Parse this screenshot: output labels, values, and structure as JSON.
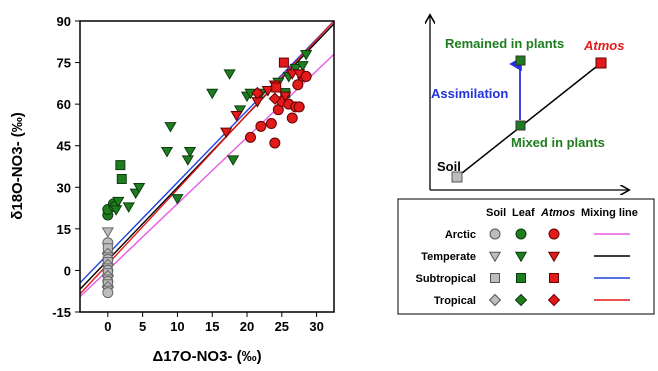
{
  "chart_data": {
    "type": "scatter",
    "xlabel": "Δ17O-NO3- (‰)",
    "ylabel": "δ18O-NO3- (‰)",
    "xlim": [
      -4,
      32.5
    ],
    "ylim": [
      -15,
      90
    ],
    "xticks": [
      0,
      5,
      10,
      15,
      20,
      25,
      30
    ],
    "yticks": [
      -15,
      0,
      15,
      30,
      45,
      60,
      75,
      90
    ],
    "grid": false,
    "marker_colors": {
      "soil": "#bdbdbd",
      "leaf": "#1e7d1e",
      "atmos": "#e31a1c"
    },
    "series": [
      {
        "group": "soil",
        "marker": "mixed",
        "points": [
          [
            0,
            14
          ],
          [
            0,
            10
          ],
          [
            0,
            8
          ],
          [
            0,
            6
          ],
          [
            0,
            5
          ],
          [
            0,
            4
          ],
          [
            0,
            3
          ],
          [
            0,
            2
          ],
          [
            0,
            1
          ],
          [
            0,
            0
          ],
          [
            0,
            -1
          ],
          [
            0,
            -2
          ],
          [
            0,
            -3
          ],
          [
            0,
            -4
          ],
          [
            0,
            -5
          ],
          [
            0,
            -6
          ],
          [
            0,
            -7
          ],
          [
            0,
            -8
          ]
        ]
      },
      {
        "group": "leaf",
        "marker": "circle",
        "points": [
          [
            0,
            20
          ],
          [
            0,
            22
          ],
          [
            0.8,
            24
          ],
          [
            1,
            23
          ]
        ]
      },
      {
        "group": "leaf",
        "marker": "triangle",
        "points": [
          [
            1.2,
            22
          ],
          [
            1.5,
            25
          ],
          [
            3,
            23
          ],
          [
            4,
            28
          ],
          [
            4.5,
            30
          ],
          [
            8.5,
            43
          ],
          [
            9,
            52
          ],
          [
            10,
            26
          ],
          [
            11.5,
            40
          ],
          [
            11.8,
            43
          ],
          [
            15,
            64
          ],
          [
            17.5,
            71
          ],
          [
            18,
            40
          ],
          [
            19,
            58
          ],
          [
            20,
            63
          ],
          [
            20.5,
            64
          ],
          [
            22,
            64
          ],
          [
            23,
            65
          ],
          [
            24.5,
            68
          ],
          [
            26,
            70
          ],
          [
            27,
            73
          ],
          [
            28,
            74
          ],
          [
            28.5,
            78
          ]
        ]
      },
      {
        "group": "leaf",
        "marker": "square",
        "points": [
          [
            1.8,
            38
          ],
          [
            2,
            33
          ],
          [
            25.5,
            64
          ]
        ]
      },
      {
        "group": "atmos",
        "marker": "circle",
        "points": [
          [
            20.5,
            48
          ],
          [
            22,
            52
          ],
          [
            23.5,
            53
          ],
          [
            24,
            46
          ],
          [
            24.5,
            58
          ],
          [
            25,
            61
          ],
          [
            26,
            60
          ],
          [
            26.5,
            55
          ],
          [
            27,
            59
          ],
          [
            27.5,
            59
          ],
          [
            28,
            70
          ],
          [
            28.5,
            70
          ],
          [
            27.3,
            67
          ]
        ]
      },
      {
        "group": "atmos",
        "marker": "triangle",
        "points": [
          [
            17,
            50
          ],
          [
            18.5,
            56
          ],
          [
            21.5,
            61
          ],
          [
            23,
            65
          ],
          [
            24,
            67
          ],
          [
            25.5,
            63
          ],
          [
            26.5,
            71
          ],
          [
            27.5,
            71
          ]
        ]
      },
      {
        "group": "atmos",
        "marker": "square",
        "points": [
          [
            25.3,
            75
          ],
          [
            24.2,
            66
          ]
        ]
      },
      {
        "group": "atmos",
        "marker": "diamond",
        "points": [
          [
            21.5,
            64
          ],
          [
            24,
            62
          ]
        ]
      }
    ],
    "lines": [
      {
        "name": "Arctic",
        "color": "#e65ce6",
        "x": [
          -4,
          32.5
        ],
        "y": [
          -9.5,
          78
        ]
      },
      {
        "name": "Temperate",
        "color": "#000000",
        "x": [
          -4,
          32.5
        ],
        "y": [
          -6.8,
          89
        ]
      },
      {
        "name": "Subtropical",
        "color": "#2244dd",
        "x": [
          -4,
          32.5
        ],
        "y": [
          -4.5,
          90
        ]
      },
      {
        "name": "Tropical",
        "color": "#e31a1c",
        "x": [
          -4,
          32.5
        ],
        "y": [
          -8.5,
          90
        ]
      }
    ]
  },
  "inset": {
    "soil_label": "Soil",
    "remained_label": "Remained in plants",
    "atmos_label": "Atmos",
    "assimilation_label": "Assimilation",
    "mixed_label": "Mixed in plants"
  },
  "legend": {
    "headers": {
      "soil": "Soil",
      "leaf": "Leaf",
      "atmos": "Atmos",
      "mixing": "Mixing line"
    },
    "rows": [
      {
        "label": "Arctic",
        "marker": "circle",
        "line_color": "#e65ce6"
      },
      {
        "label": "Temperate",
        "marker": "triangle",
        "line_color": "#000000"
      },
      {
        "label": "Subtropical",
        "marker": "square",
        "line_color": "#2244dd"
      },
      {
        "label": "Tropical",
        "marker": "diamond",
        "line_color": "#e31a1c"
      }
    ]
  }
}
